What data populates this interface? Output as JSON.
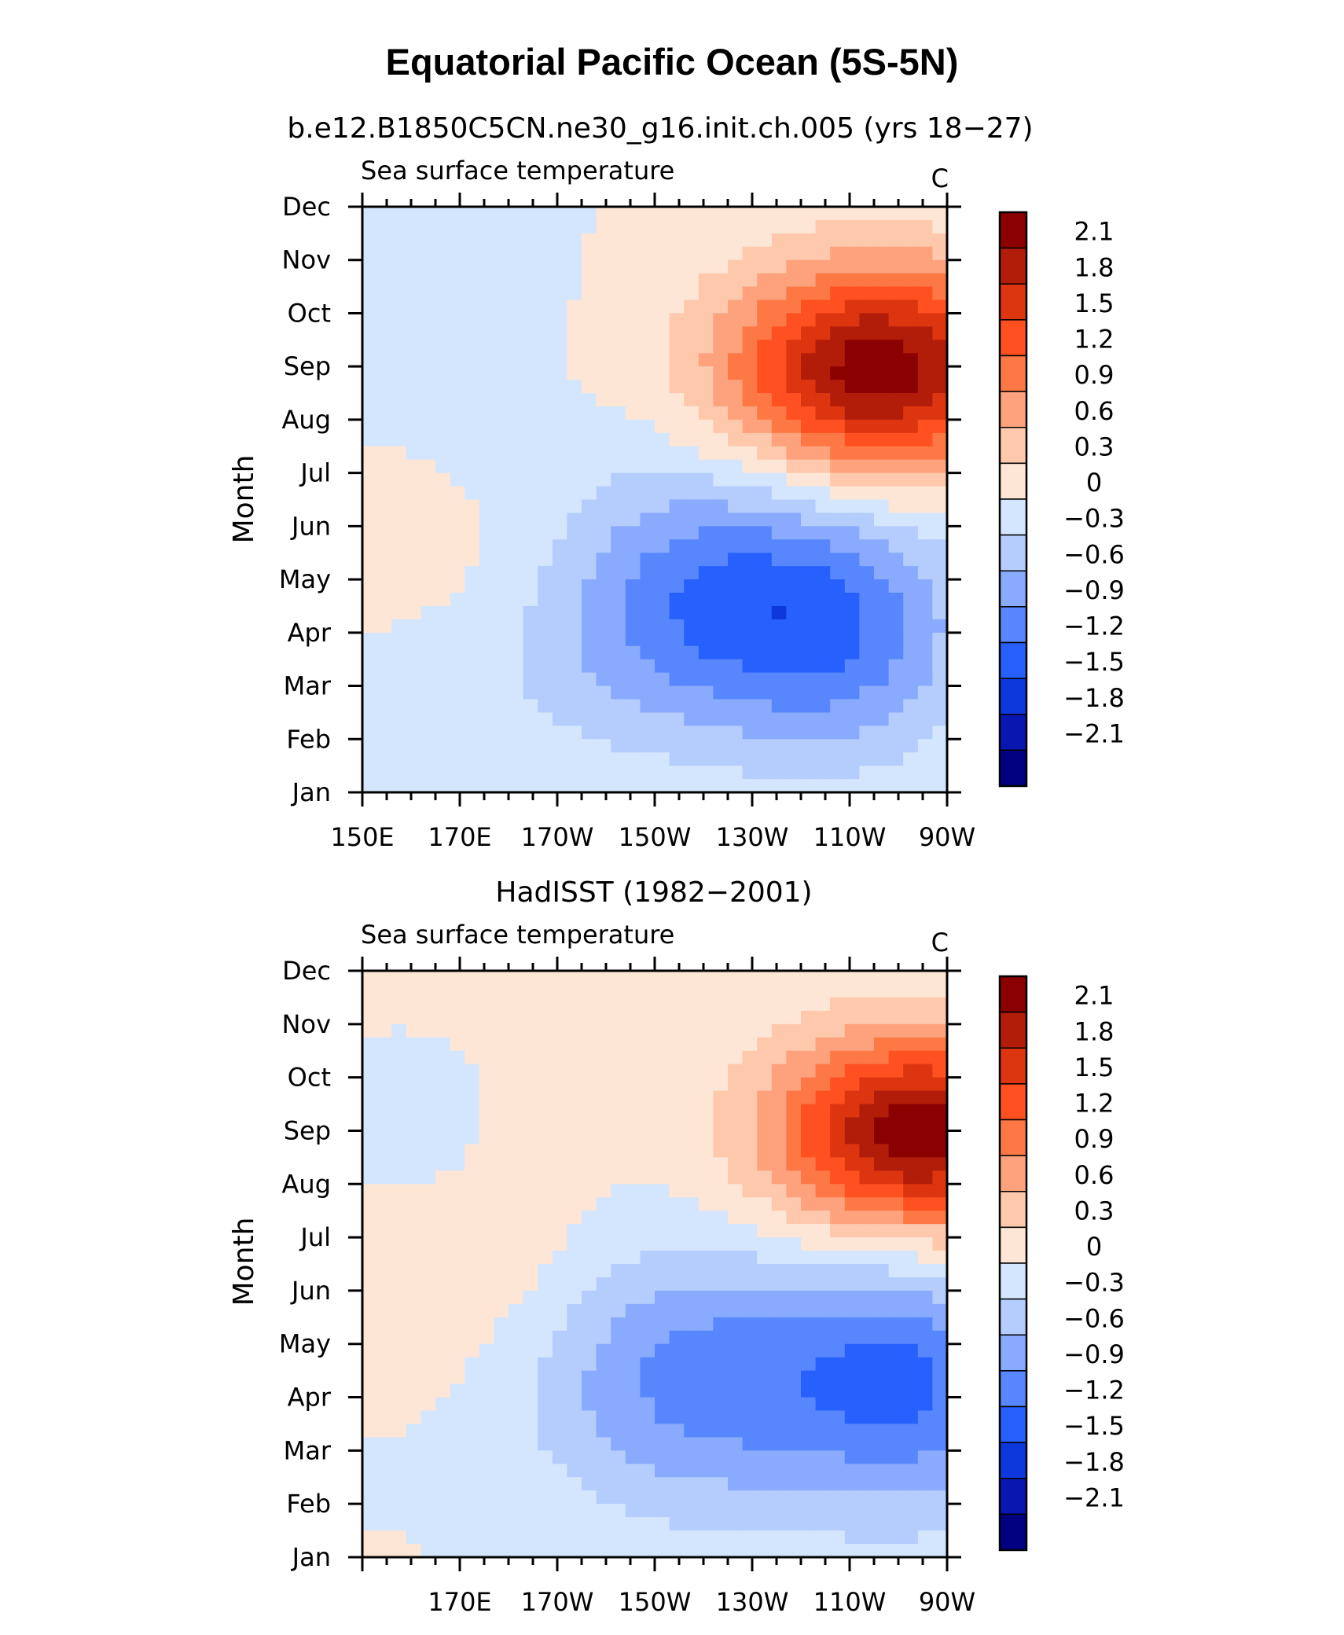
{
  "chart_data": {
    "type": "heatmap",
    "title": "Equatorial Pacific Ocean (5S-5N)",
    "colorbar": {
      "labels": [
        "2.1",
        "1.8",
        "1.5",
        "1.2",
        "0.9",
        "0.6",
        "0.3",
        "0",
        "−0.3",
        "−0.6",
        "−0.9",
        "−1.2",
        "−1.5",
        "−1.8",
        "−2.1"
      ],
      "colors": [
        "#8b0000",
        "#b21d0a",
        "#dc3510",
        "#fe5020",
        "#fe7846",
        "#fda27c",
        "#fdc8ac",
        "#fde6d6",
        "#d4e6fd",
        "#b4cdfd",
        "#89aafd",
        "#5887fd",
        "#2760fd",
        "#0c38dc",
        "#0917b0",
        "#000080"
      ]
    },
    "panels": [
      {
        "subtitle": "b.e12.B1850C5CN.ne30_g16.init.ch.005 (yrs 18−27)",
        "left_title": "Sea surface temperature",
        "units": "C",
        "ylabel": "Month",
        "xlim": [
          150,
          270
        ],
        "x_ticks": [
          150,
          170,
          190,
          210,
          230,
          250,
          270
        ],
        "x_tick_labels": [
          "150E",
          "170E",
          "170W",
          "150W",
          "130W",
          "110W",
          "90W"
        ],
        "y_tick_labels": [
          "Jan",
          "Feb",
          "Mar",
          "Apr",
          "May",
          "Jun",
          "Jul",
          "Aug",
          "Sep",
          "Oct",
          "Nov",
          "Dec"
        ],
        "field": [
          {
            "cx": 0.88,
            "cy": 0.72,
            "rx": 0.26,
            "ry": 0.18,
            "amp": 2.3
          },
          {
            "cx": 0.58,
            "cy": 0.33,
            "rx": 0.35,
            "ry": 0.22,
            "amp": -1.3
          },
          {
            "cx": 0.82,
            "cy": 0.25,
            "rx": 0.2,
            "ry": 0.2,
            "amp": -0.6
          },
          {
            "cx": 0.28,
            "cy": 0.38,
            "rx": 0.26,
            "ry": 0.16,
            "amp": 0.4
          },
          {
            "cx": 0.15,
            "cy": 0.88,
            "rx": 0.15,
            "ry": 0.12,
            "amp": -0.2
          }
        ]
      },
      {
        "subtitle": "HadISST (1982−2001)",
        "left_title": "Sea surface temperature",
        "units": "C",
        "ylabel": "Month",
        "xlim": [
          150,
          270
        ],
        "x_ticks": [
          170,
          190,
          210,
          230,
          250,
          270
        ],
        "x_tick_labels": [
          "170E",
          "170W",
          "150W",
          "130W",
          "110W",
          "90W"
        ],
        "y_tick_labels": [
          "Jan",
          "Feb",
          "Mar",
          "Apr",
          "May",
          "Jun",
          "Jul",
          "Aug",
          "Sep",
          "Oct",
          "Nov",
          "Dec"
        ],
        "field": [
          {
            "cx": 0.95,
            "cy": 0.72,
            "rx": 0.25,
            "ry": 0.17,
            "amp": 2.3
          },
          {
            "cx": 0.62,
            "cy": 0.3,
            "rx": 0.36,
            "ry": 0.22,
            "amp": -1.1
          },
          {
            "cx": 0.95,
            "cy": 0.3,
            "rx": 0.18,
            "ry": 0.22,
            "amp": -0.8
          },
          {
            "cx": 0.22,
            "cy": 0.45,
            "rx": 0.2,
            "ry": 0.3,
            "amp": 0.3
          },
          {
            "cx": 0.12,
            "cy": 0.72,
            "rx": 0.12,
            "ry": 0.12,
            "amp": -0.2
          }
        ]
      }
    ]
  }
}
